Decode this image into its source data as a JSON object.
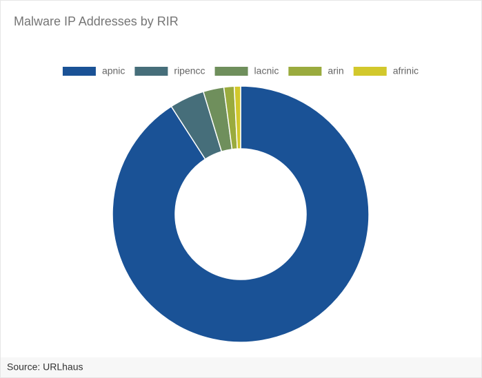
{
  "chart_data": {
    "type": "donut",
    "title": "Malware IP Addresses by RIR",
    "categories": [
      "apnic",
      "ripencc",
      "lacnic",
      "arin",
      "afrinic"
    ],
    "values": [
      90.9,
      4.4,
      2.6,
      1.3,
      0.8
    ],
    "colors": [
      "#1a5296",
      "#466e7a",
      "#6f8f5c",
      "#9aab3e",
      "#d2c82c"
    ],
    "legend": "top"
  },
  "source": "Source: URLhaus"
}
